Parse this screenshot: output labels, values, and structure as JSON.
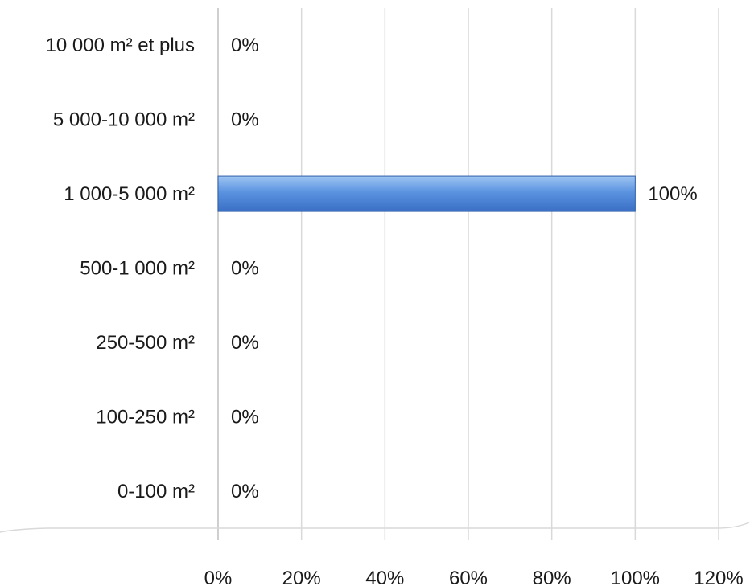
{
  "colors": {
    "bar_top": "#9ec5f2",
    "bar_mid": "#5b93e0",
    "bar_bottom": "#3a6fc4",
    "bar_edge": "#2f5ea8",
    "grid": "#d9d9d9",
    "text": "#1a1a1a"
  },
  "chart_data": {
    "type": "bar",
    "orientation": "horizontal",
    "title": "",
    "xlabel": "",
    "ylabel": "",
    "categories": [
      "0-100 m²",
      "100-250 m²",
      "250-500 m²",
      "500-1 000 m²",
      "1 000-5 000 m²",
      "5 000-10 000 m²",
      "10 000 m² et plus"
    ],
    "values": [
      0,
      0,
      0,
      0,
      100,
      0,
      0
    ],
    "value_unit": "%",
    "data_labels": [
      "0%",
      "0%",
      "0%",
      "0%",
      "100%",
      "0%",
      "0%"
    ],
    "xlim": [
      0,
      120
    ],
    "x_ticks": [
      0,
      20,
      40,
      60,
      80,
      100,
      120
    ],
    "x_tick_labels": [
      "0%",
      "20%",
      "40%",
      "60%",
      "80%",
      "100%",
      "120%"
    ],
    "grid": true,
    "legend": "none"
  }
}
